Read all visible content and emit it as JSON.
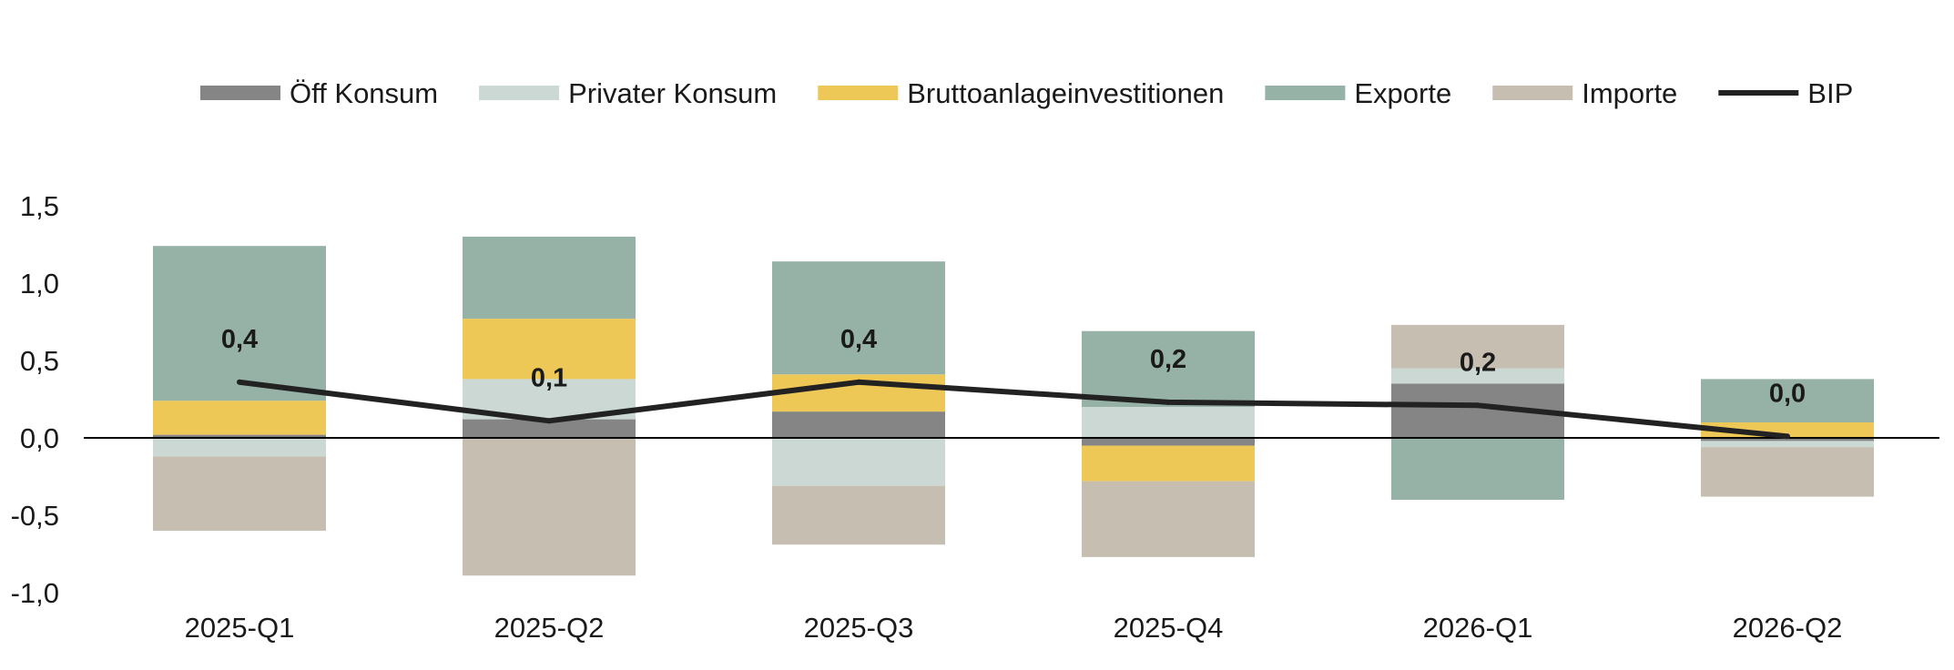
{
  "chart_data": {
    "type": "bar",
    "subtype": "stacked-bar-with-line",
    "title": "",
    "xlabel": "",
    "ylabel": "",
    "categories": [
      "2025-Q1",
      "2025-Q2",
      "2025-Q3",
      "2025-Q4",
      "2026-Q1",
      "2026-Q2"
    ],
    "ylim": [
      -1.0,
      1.5
    ],
    "yticks": [
      -1.0,
      -0.5,
      0.0,
      0.5,
      1.0,
      1.5
    ],
    "ytick_labels": [
      "-1,0",
      "-0,5",
      "0,0",
      "0,5",
      "1,0",
      "1,5"
    ],
    "grid": false,
    "legend_position": "top",
    "series": [
      {
        "name": "Öff Konsum",
        "kind": "bar",
        "color": "#858585",
        "values": [
          0.02,
          0.12,
          0.17,
          -0.05,
          0.35,
          -0.02
        ]
      },
      {
        "name": "Privater Konsum",
        "kind": "bar",
        "color": "#cbd8d3",
        "values": [
          -0.12,
          0.26,
          -0.31,
          0.2,
          0.1,
          -0.04
        ]
      },
      {
        "name": "Bruttoanlageinvestitionen",
        "kind": "bar",
        "color": "#eec857",
        "values": [
          0.22,
          0.39,
          0.24,
          -0.23,
          0.0,
          0.1
        ]
      },
      {
        "name": "Exporte",
        "kind": "bar",
        "color": "#96b1a5",
        "values": [
          1.0,
          0.53,
          0.73,
          0.49,
          -0.4,
          0.28
        ]
      },
      {
        "name": "Importe",
        "kind": "bar",
        "color": "#c5beb1",
        "values": [
          -0.48,
          -0.89,
          -0.38,
          -0.49,
          0.28,
          -0.32
        ]
      },
      {
        "name": "BIP",
        "kind": "line",
        "color": "#222222",
        "values": [
          0.36,
          0.11,
          0.36,
          0.23,
          0.21,
          0.01
        ]
      }
    ],
    "data_labels": [
      "0,4",
      "0,1",
      "0,4",
      "0,2",
      "0,2",
      "0,0"
    ]
  }
}
